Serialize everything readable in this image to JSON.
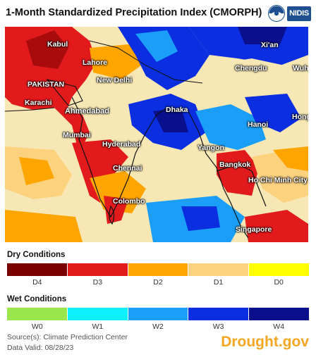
{
  "title": "1-Month Standardized Precipitation Index (CMORPH)",
  "logos": {
    "noaa": "noaa-logo",
    "nidis": "NIDIS",
    "noaa_text": "NOAA"
  },
  "colors": {
    "D4": "#7a0000",
    "D3": "#e31a1c",
    "D2": "#ffa500",
    "D1": "#fcd27f",
    "D0": "#ffff00",
    "W0": "#99e64d",
    "W1": "#0ff0ff",
    "W2": "#1a9ef7",
    "W3": "#0a2ee0",
    "W4": "#0a0f8c",
    "neutral": "#f6e7b4",
    "water": "#ffffff"
  },
  "cities": {
    "kabul": "Kabul",
    "xian": "Xi'an",
    "lahore": "Lahore",
    "chengdu": "Chengdu",
    "wuhan": "Wuhan",
    "pakistan": "PAKISTAN",
    "new_delhi": "New Delhi",
    "karachi": "Karachi",
    "ahmedabad": "Ahmedabad",
    "dhaka": "Dhaka",
    "hong": "Hong",
    "hanoi": "Hanoi",
    "mumbai": "Mumbai",
    "hyderabad": "Hyderabad",
    "yangon": "Yangon",
    "bangkok": "Bangkok",
    "chennai": "Chennai",
    "ho_chi_minh": "Ho Chi Minh City",
    "colombo": "Colombo",
    "singapore": "Singapore"
  },
  "legend": {
    "dry_heading": "Dry Conditions",
    "dry": [
      {
        "label": "D4",
        "color": "#7a0000"
      },
      {
        "label": "D3",
        "color": "#e31a1c"
      },
      {
        "label": "D2",
        "color": "#ffa500"
      },
      {
        "label": "D1",
        "color": "#fcd27f"
      },
      {
        "label": "D0",
        "color": "#ffff00"
      }
    ],
    "wet_heading": "Wet Conditions",
    "wet": [
      {
        "label": "W0",
        "color": "#99e64d"
      },
      {
        "label": "W1",
        "color": "#0ff0ff"
      },
      {
        "label": "W2",
        "color": "#1a9ef7"
      },
      {
        "label": "W3",
        "color": "#0a2ee0"
      },
      {
        "label": "W4",
        "color": "#0a0f8c"
      }
    ]
  },
  "footer": {
    "source": "Source(s): Climate Prediction Center",
    "valid": "Data Valid: 08/28/23",
    "brand": "Drought.gov"
  }
}
